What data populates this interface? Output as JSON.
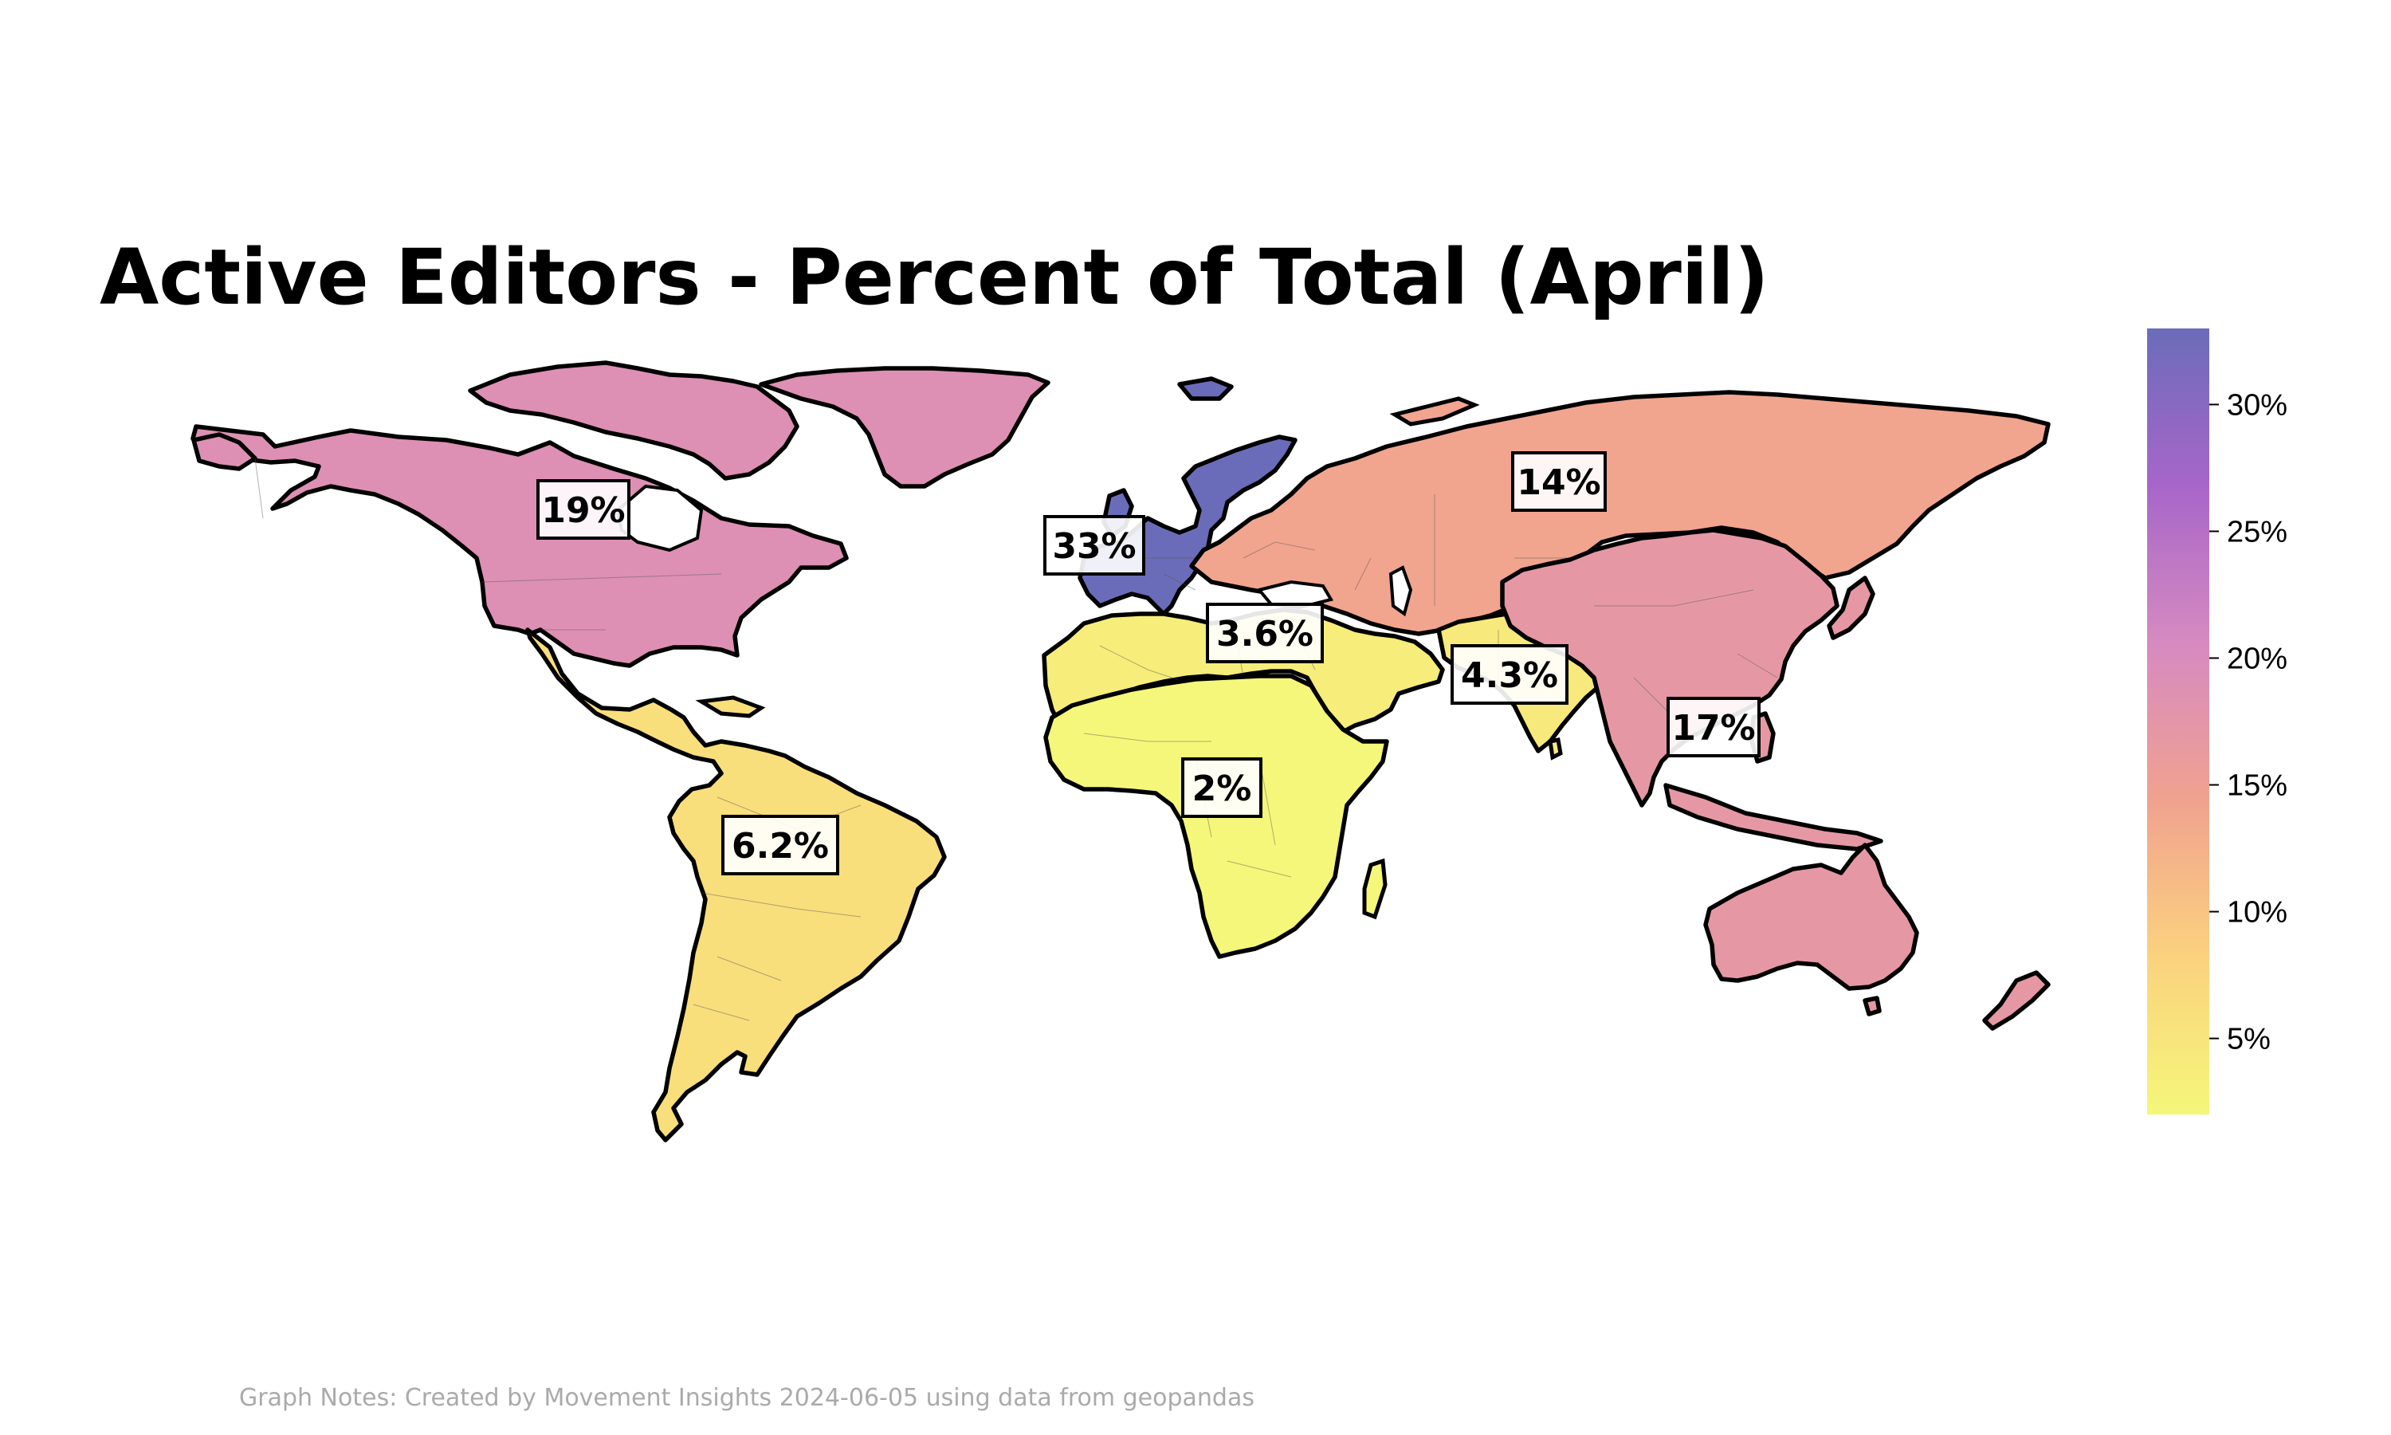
{
  "title": "Active Editors - Percent of Total (April)",
  "footnote": "Graph Notes: Created by Movement Insights 2024-06-05 using data from geopandas",
  "chart_data": {
    "type": "choropleth",
    "title": "Active Editors - Percent of Total (April)",
    "value_unit": "%",
    "colormap": {
      "name": "plasma_r",
      "range": [
        2,
        33
      ],
      "stops": [
        "#f4f779",
        "#fbd27e",
        "#f0a28f",
        "#d68ac0",
        "#a766c9",
        "#6b6cb9"
      ]
    },
    "colorbar": {
      "ticks": [
        5,
        10,
        15,
        20,
        25,
        30
      ],
      "tick_labels": [
        "5%",
        "10%",
        "15%",
        "20%",
        "25%",
        "30%"
      ]
    },
    "regions": [
      {
        "id": "northern-america",
        "label": "19%",
        "value": 19
      },
      {
        "id": "latin-america",
        "label": "6.2%",
        "value": 6.2
      },
      {
        "id": "western-europe",
        "label": "33%",
        "value": 33
      },
      {
        "id": "eastern-europe-central-asia",
        "label": "14%",
        "value": 14
      },
      {
        "id": "middle-east-north-africa",
        "label": "3.6%",
        "value": 3.6
      },
      {
        "id": "sub-saharan-africa",
        "label": "2%",
        "value": 2
      },
      {
        "id": "south-asia",
        "label": "4.3%",
        "value": 4.3
      },
      {
        "id": "east-southeast-asia-pacific",
        "label": "17%",
        "value": 17
      }
    ]
  }
}
